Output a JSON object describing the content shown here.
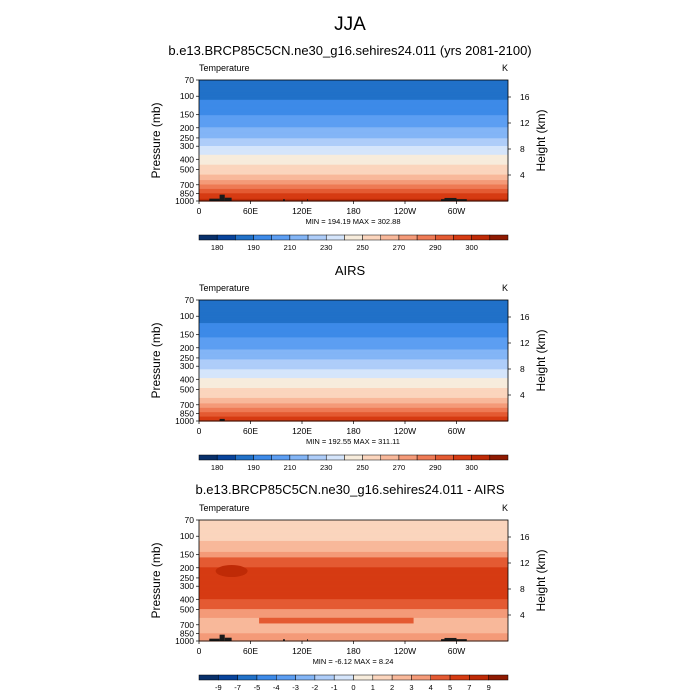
{
  "main_title": "JJA",
  "colors": {
    "palette": [
      "#08306b",
      "#08449c",
      "#2171c8",
      "#3d8ae8",
      "#5c9ef2",
      "#83b5f6",
      "#aecdf9",
      "#d5e5fb",
      "#f7ecdc",
      "#fbd5bd",
      "#f8b89a",
      "#f49a78",
      "#ee7a55",
      "#e45a32",
      "#d63b12",
      "#bf2a06",
      "#8f1a02"
    ],
    "terrain": "#1a1a1a"
  },
  "chart_data": [
    {
      "type": "heatmap",
      "title": "b.e13.BRCP85C5CN.ne30_g16.sehires24.011 (yrs 2081-2100)",
      "left_label": "Temperature",
      "right_label": "K",
      "xlabel": "",
      "ylabel": "Pressure (mb)",
      "ylabel_right": "Height (km)",
      "x_ticks": [
        "0",
        "60E",
        "120E",
        "180",
        "120W",
        "60W"
      ],
      "x_range": [
        0,
        360
      ],
      "y_ticks": [
        70,
        100,
        150,
        200,
        250,
        300,
        400,
        500,
        700,
        850,
        1000
      ],
      "y_range": [
        70,
        1000
      ],
      "y_scale": "log",
      "height_ticks": [
        4,
        8,
        12,
        16
      ],
      "stats": "MIN = 194.19  MAX = 302.88",
      "colorbar_labels": [
        "180",
        "190",
        "210",
        "230",
        "250",
        "270",
        "290",
        "300"
      ],
      "temperature_profile": [
        {
          "p": 70,
          "t": 200
        },
        {
          "p": 100,
          "t": 198
        },
        {
          "p": 130,
          "t": 205
        },
        {
          "p": 160,
          "t": 212
        },
        {
          "p": 200,
          "t": 220
        },
        {
          "p": 250,
          "t": 230
        },
        {
          "p": 300,
          "t": 240
        },
        {
          "p": 400,
          "t": 255
        },
        {
          "p": 500,
          "t": 265
        },
        {
          "p": 600,
          "t": 273
        },
        {
          "p": 700,
          "t": 280
        },
        {
          "p": 850,
          "t": 290
        },
        {
          "p": 1000,
          "t": 298
        }
      ],
      "terrain": [
        {
          "x0": 12,
          "x1": 24,
          "p": 950
        },
        {
          "x0": 24,
          "x1": 30,
          "p": 870
        },
        {
          "x0": 30,
          "x1": 38,
          "p": 930
        },
        {
          "x0": 98,
          "x1": 100,
          "p": 960
        },
        {
          "x0": 126,
          "x1": 127,
          "p": 960
        },
        {
          "x0": 282,
          "x1": 286,
          "p": 960
        },
        {
          "x0": 286,
          "x1": 300,
          "p": 935
        },
        {
          "x0": 300,
          "x1": 312,
          "p": 960
        }
      ]
    },
    {
      "type": "heatmap",
      "title": "AIRS",
      "left_label": "Temperature",
      "right_label": "K",
      "xlabel": "",
      "ylabel": "Pressure (mb)",
      "ylabel_right": "Height (km)",
      "x_ticks": [
        "0",
        "60E",
        "120E",
        "180",
        "120W",
        "60W"
      ],
      "x_range": [
        0,
        360
      ],
      "y_ticks": [
        70,
        100,
        150,
        200,
        250,
        300,
        400,
        500,
        700,
        850,
        1000
      ],
      "y_range": [
        70,
        1000
      ],
      "y_scale": "log",
      "height_ticks": [
        4,
        8,
        12,
        16
      ],
      "stats": "MIN = 192.55  MAX = 311.11",
      "colorbar_labels": [
        "180",
        "190",
        "210",
        "230",
        "250",
        "270",
        "290",
        "300"
      ],
      "temperature_profile": [
        {
          "p": 70,
          "t": 198
        },
        {
          "p": 100,
          "t": 196
        },
        {
          "p": 130,
          "t": 203
        },
        {
          "p": 160,
          "t": 210
        },
        {
          "p": 200,
          "t": 218
        },
        {
          "p": 250,
          "t": 228
        },
        {
          "p": 300,
          "t": 237
        },
        {
          "p": 400,
          "t": 252
        },
        {
          "p": 500,
          "t": 262
        },
        {
          "p": 600,
          "t": 270
        },
        {
          "p": 700,
          "t": 277
        },
        {
          "p": 850,
          "t": 287
        },
        {
          "p": 1000,
          "t": 295
        }
      ],
      "terrain": [
        {
          "x0": 24,
          "x1": 30,
          "p": 955
        }
      ]
    },
    {
      "type": "heatmap",
      "title": "b.e13.BRCP85C5CN.ne30_g16.sehires24.011 - AIRS",
      "left_label": "Temperature",
      "right_label": "K",
      "xlabel": "",
      "ylabel": "Pressure (mb)",
      "ylabel_right": "Height (km)",
      "x_ticks": [
        "0",
        "60E",
        "120E",
        "180",
        "120W",
        "60W"
      ],
      "x_range": [
        0,
        360
      ],
      "y_ticks": [
        70,
        100,
        150,
        200,
        250,
        300,
        400,
        500,
        700,
        850,
        1000
      ],
      "y_range": [
        70,
        1000
      ],
      "y_scale": "log",
      "height_ticks": [
        4,
        8,
        12,
        16
      ],
      "stats": "MIN = -6.12  MAX =  8.24",
      "colorbar_labels": [
        "-9",
        "-7",
        "-5",
        "-4",
        "-3",
        "-2",
        "-1",
        "0",
        "1",
        "2",
        "3",
        "4",
        "5",
        "7",
        "9"
      ],
      "difference_profile": [
        {
          "p": 70,
          "d": 2
        },
        {
          "p": 90,
          "d": 1
        },
        {
          "p": 110,
          "d": 2
        },
        {
          "p": 140,
          "d": 3
        },
        {
          "p": 160,
          "d": 4
        },
        {
          "p": 200,
          "d": 5
        },
        {
          "p": 300,
          "d": 5
        },
        {
          "p": 400,
          "d": 5
        },
        {
          "p": 500,
          "d": 4
        },
        {
          "p": 600,
          "d": 3
        },
        {
          "p": 700,
          "d": 2
        },
        {
          "p": 850,
          "d": 3
        },
        {
          "p": 1000,
          "d": 3
        }
      ],
      "terrain": [
        {
          "x0": 12,
          "x1": 24,
          "p": 950
        },
        {
          "x0": 24,
          "x1": 30,
          "p": 870
        },
        {
          "x0": 30,
          "x1": 38,
          "p": 930
        },
        {
          "x0": 98,
          "x1": 100,
          "p": 960
        },
        {
          "x0": 126,
          "x1": 127,
          "p": 960
        },
        {
          "x0": 282,
          "x1": 286,
          "p": 960
        },
        {
          "x0": 286,
          "x1": 300,
          "p": 935
        },
        {
          "x0": 300,
          "x1": 312,
          "p": 960
        }
      ]
    }
  ]
}
